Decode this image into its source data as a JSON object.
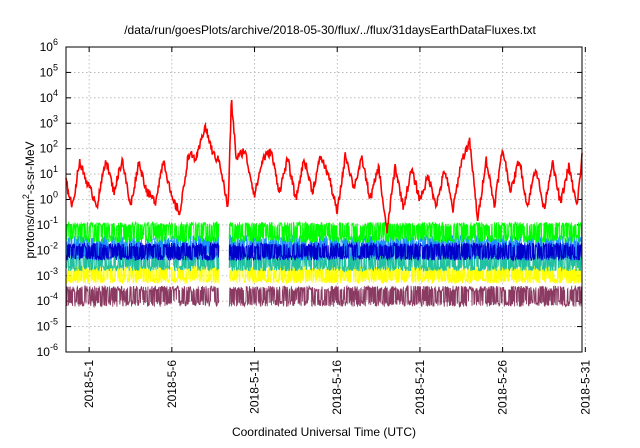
{
  "chart_data": {
    "type": "line",
    "title": "/data/run/goesPlots/archive/2018-05-30/flux/../flux/31daysEarthDataFluxes.txt",
    "xlabel": "Coordinated Universal Time (UTC)",
    "ylabel_parts": {
      "base": "protons/cm",
      "sup": "2",
      "rest": "-s-sr-MeV"
    },
    "y_scale": "log",
    "ylim": [
      1e-06,
      1000000.0
    ],
    "xlim": [
      -1.4,
      29.8
    ],
    "grid": true,
    "y_ticks": [
      {
        "value": 1e-06,
        "base": "10",
        "exp": "-6"
      },
      {
        "value": 1e-05,
        "base": "10",
        "exp": "-5"
      },
      {
        "value": 0.0001,
        "base": "10",
        "exp": "-4"
      },
      {
        "value": 0.001,
        "base": "10",
        "exp": "-3"
      },
      {
        "value": 0.01,
        "base": "10",
        "exp": "-2"
      },
      {
        "value": 0.1,
        "base": "10",
        "exp": "-1"
      },
      {
        "value": 1,
        "base": "10",
        "exp": "0"
      },
      {
        "value": 10.0,
        "base": "10",
        "exp": "1"
      },
      {
        "value": 100.0,
        "base": "10",
        "exp": "2"
      },
      {
        "value": 1000.0,
        "base": "10",
        "exp": "3"
      },
      {
        "value": 10000.0,
        "base": "10",
        "exp": "4"
      },
      {
        "value": 100000.0,
        "base": "10",
        "exp": "5"
      },
      {
        "value": 1000000.0,
        "base": "10",
        "exp": "6"
      }
    ],
    "x_ticks": [
      {
        "value": 0,
        "label": "2018-5-1"
      },
      {
        "value": 5,
        "label": "2018-5-6"
      },
      {
        "value": 10,
        "label": "2018-5-11"
      },
      {
        "value": 15,
        "label": "2018-5-16"
      },
      {
        "value": 20,
        "label": "2018-5-21"
      },
      {
        "value": 25,
        "label": "2018-5-26"
      },
      {
        "value": 30,
        "label": "2018-5-31"
      }
    ],
    "series": [
      {
        "color": "#8b3a62",
        "lo": 6e-05,
        "hi": 0.0004,
        "x": [
          -1.4,
          6.0,
          12.0,
          18.0,
          24.0,
          29.8
        ],
        "y": [
          0.00017,
          0.00018,
          0.00017,
          0.00018,
          0.00017,
          0.00018
        ]
      },
      {
        "color": "#ffff00",
        "lo": 0.0005,
        "hi": 0.0025,
        "x": [
          -1.4,
          6.0,
          12.0,
          18.0,
          24.0,
          29.8
        ],
        "y": [
          0.0011,
          0.0012,
          0.0011,
          0.0012,
          0.0011,
          0.0012
        ]
      },
      {
        "color": "#20c0a0",
        "lo": 0.0015,
        "hi": 0.008,
        "x": [
          -1.4,
          6.0,
          12.0,
          18.0,
          24.0,
          29.8
        ],
        "y": [
          0.0035,
          0.0036,
          0.0035,
          0.0036,
          0.0035,
          0.0036
        ]
      },
      {
        "color": "#1e90ff",
        "lo": 0.004,
        "hi": 0.04,
        "x": [
          -1.4,
          6.0,
          12.0,
          18.0,
          24.0,
          29.8
        ],
        "y": [
          0.013,
          0.014,
          0.013,
          0.014,
          0.013,
          0.014
        ]
      },
      {
        "color": "#00ff00",
        "lo": 0.02,
        "hi": 0.13,
        "x": [
          -1.4,
          6.0,
          12.0,
          18.0,
          24.0,
          29.8
        ],
        "y": [
          0.06,
          0.065,
          0.06,
          0.065,
          0.06,
          0.065
        ]
      },
      {
        "color": "#0000cd",
        "lo": 0.004,
        "hi": 0.02,
        "x": [
          -1.4,
          6.0,
          12.0,
          18.0,
          24.0,
          29.8
        ],
        "y": [
          0.009,
          0.0095,
          0.009,
          0.0095,
          0.009,
          0.0095
        ]
      },
      {
        "color": "#ff0000",
        "x": [
          -1.4,
          -1.0,
          -0.6,
          0.0,
          0.5,
          1.0,
          1.5,
          2.0,
          2.5,
          3.0,
          3.5,
          4.0,
          4.5,
          5.0,
          5.5,
          6.0,
          6.5,
          7.0,
          7.5,
          7.9,
          8.4,
          8.6,
          8.9,
          9.4,
          10.0,
          10.5,
          11.0,
          11.5,
          12.0,
          12.5,
          13.0,
          13.5,
          14.0,
          14.5,
          15.0,
          15.5,
          16.0,
          16.5,
          17.0,
          17.5,
          18.0,
          18.5,
          19.0,
          19.5,
          20.0,
          20.5,
          21.0,
          21.5,
          22.0,
          22.5,
          23.0,
          23.5,
          24.0,
          24.5,
          25.0,
          25.5,
          26.0,
          26.5,
          27.0,
          27.5,
          28.0,
          28.5,
          29.0,
          29.5,
          29.8
        ],
        "y": [
          5,
          0.5,
          30,
          3,
          0.6,
          40,
          2,
          40,
          0.5,
          30,
          2,
          0.8,
          40,
          1,
          0.3,
          60,
          40,
          800,
          60,
          30,
          0.4,
          8000,
          40,
          90,
          1.5,
          40,
          80,
          2,
          40,
          1,
          40,
          2,
          50,
          8,
          0.3,
          60,
          3,
          40,
          1,
          20,
          0.05,
          20,
          0.5,
          15,
          1,
          8,
          0.6,
          15,
          0.4,
          30,
          200,
          0.15,
          40,
          0.6,
          100,
          2,
          40,
          0.5,
          20,
          0.4,
          30,
          0.7,
          20,
          0.5,
          50
        ]
      }
    ]
  }
}
